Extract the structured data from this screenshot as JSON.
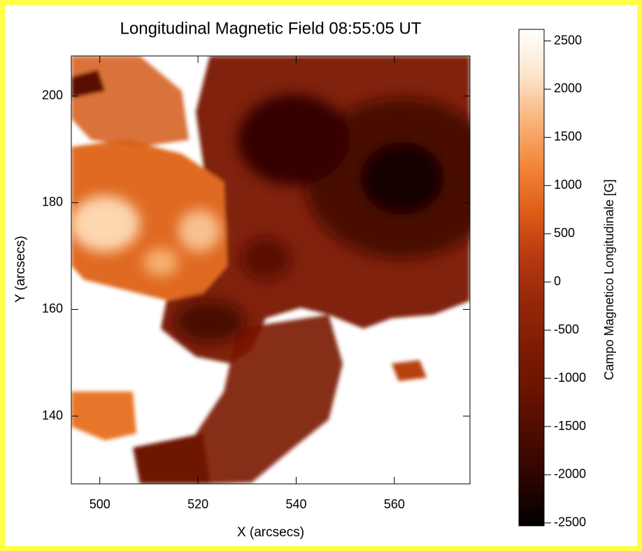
{
  "chart_data": {
    "type": "heatmap",
    "title": "Longitudinal Magnetic Field 08:55:05 UT",
    "x_label": "X (arcsecs)",
    "y_label": "Y (arcsecs)",
    "xlim": [
      494.2,
      575.4
    ],
    "xticks": [
      500,
      520,
      540,
      560
    ],
    "ylim": [
      127.3,
      207.5
    ],
    "yticks": [
      140,
      160,
      180,
      200
    ],
    "colorbar": {
      "label": "Campo Magnetico Longitudinale [G]",
      "lim": [
        -2530,
        2620
      ],
      "ticks": [
        -2500,
        -2000,
        -1500,
        -1000,
        -500,
        0,
        500,
        1000,
        1500,
        2000,
        2500
      ],
      "colormap": [
        "#000000",
        "#2a0400",
        "#4a0c00",
        "#6a1400",
        "#801c04",
        "#96280a",
        "#b83a10",
        "#e05e18",
        "#f2873a",
        "#f9b47c",
        "#fde6cc",
        "#ffffff"
      ]
    }
  }
}
